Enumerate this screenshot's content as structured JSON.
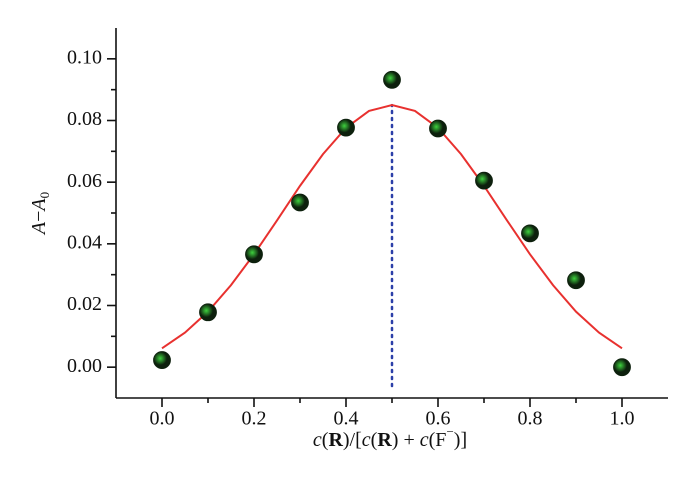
{
  "chart_data": {
    "type": "scatter",
    "xlabel": [
      "c",
      "(",
      "R",
      ")/[",
      "c",
      "(",
      "R",
      ") + ",
      "c",
      "(F",
      "−",
      ")]"
    ],
    "ylabel": [
      "A",
      "−",
      "A",
      "0"
    ],
    "x": [
      0.0,
      0.1,
      0.2,
      0.3,
      0.4,
      0.5,
      0.6,
      0.7,
      0.8,
      0.9,
      1.0
    ],
    "values": [
      0.0023,
      0.0178,
      0.0366,
      0.0534,
      0.0777,
      0.0932,
      0.0774,
      0.0605,
      0.0434,
      0.0282,
      0.0
    ],
    "marker_color": "#0d200d",
    "marker_highlight": "#3ed13e",
    "fit": {
      "color": "#e8312f",
      "x": [
        0.0,
        0.05,
        0.1,
        0.15,
        0.2,
        0.25,
        0.3,
        0.35,
        0.4,
        0.45,
        0.5,
        0.55,
        0.6,
        0.65,
        0.7,
        0.75,
        0.8,
        0.85,
        0.9,
        0.95,
        1.0
      ],
      "values": [
        0.0061,
        0.0112,
        0.018,
        0.0266,
        0.0366,
        0.0476,
        0.0588,
        0.0691,
        0.0776,
        0.0831,
        0.085,
        0.0831,
        0.0776,
        0.0691,
        0.0588,
        0.0476,
        0.0366,
        0.0266,
        0.018,
        0.0112,
        0.0061
      ]
    },
    "vline": {
      "x": 0.5,
      "color": "#2b3fa8"
    },
    "xlim": [
      -0.1,
      1.1
    ],
    "ylim": [
      -0.01,
      0.11
    ],
    "xticks": [
      {
        "value": 0.0,
        "label": "0.0"
      },
      0.2,
      0.4,
      0.6,
      0.8,
      {
        "value": 1.0,
        "label": "1.0"
      }
    ],
    "xminor": [
      0.1,
      0.3,
      0.5,
      0.7,
      0.9
    ],
    "yticks": [
      {
        "value": 0.0,
        "label": "0.00"
      },
      {
        "value": 0.02,
        "label": "0.02"
      },
      {
        "value": 0.04,
        "label": "0.04"
      },
      {
        "value": 0.06,
        "label": "0.06"
      },
      {
        "value": 0.08,
        "label": "0.08"
      },
      {
        "value": 0.1,
        "label": "0.10"
      }
    ],
    "yminor": [
      0.01,
      0.03,
      0.05,
      0.07,
      0.09
    ]
  }
}
